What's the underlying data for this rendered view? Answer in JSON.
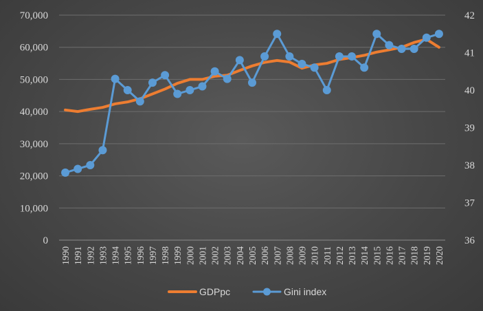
{
  "chart_data": {
    "type": "line",
    "title": "",
    "xlabel": "",
    "ylabel": "",
    "x": [
      "1990",
      "1991",
      "1992",
      "1993",
      "1994",
      "1995",
      "1996",
      "1997",
      "1998",
      "1999",
      "2000",
      "2001",
      "2002",
      "2003",
      "2004",
      "2005",
      "2006",
      "2007",
      "2008",
      "2009",
      "2010",
      "2011",
      "2012",
      "2013",
      "2014",
      "2015",
      "2016",
      "2017",
      "2018",
      "2019",
      "2020"
    ],
    "y_left": {
      "lim": [
        0,
        70000
      ],
      "ticks": [
        0,
        10000,
        20000,
        30000,
        40000,
        50000,
        60000,
        70000
      ],
      "tick_labels": [
        "0",
        "10,000",
        "20,000",
        "30,000",
        "40,000",
        "50,000",
        "60,000",
        "70,000"
      ]
    },
    "y_right": {
      "lim": [
        36,
        42
      ],
      "ticks": [
        36,
        37,
        38,
        39,
        40,
        41,
        42
      ],
      "tick_labels": [
        "36",
        "37",
        "38",
        "39",
        "40",
        "41",
        "42"
      ]
    },
    "grid": "horizontal",
    "legend": "bottom",
    "series": [
      {
        "name": "GDPpc",
        "axis": "left",
        "color": "#ed7d31",
        "markers": false,
        "values": [
          40500,
          40000,
          40700,
          41300,
          42400,
          43000,
          44000,
          45500,
          47000,
          48800,
          50000,
          50000,
          51000,
          51300,
          52800,
          54200,
          55300,
          55900,
          55400,
          53500,
          54500,
          55000,
          56200,
          56800,
          57500,
          58500,
          59200,
          60000,
          61500,
          62500,
          60000
        ]
      },
      {
        "name": "Gini index",
        "axis": "right",
        "color": "#5b9bd5",
        "markers": true,
        "values": [
          37.8,
          37.9,
          38.0,
          38.4,
          40.3,
          40.0,
          39.7,
          40.2,
          40.4,
          39.9,
          40.0,
          40.1,
          40.5,
          40.3,
          40.8,
          40.2,
          40.9,
          41.5,
          40.9,
          40.7,
          40.6,
          40.0,
          40.9,
          40.9,
          40.6,
          41.5,
          41.2,
          41.1,
          41.1,
          41.4,
          41.5
        ]
      }
    ]
  }
}
